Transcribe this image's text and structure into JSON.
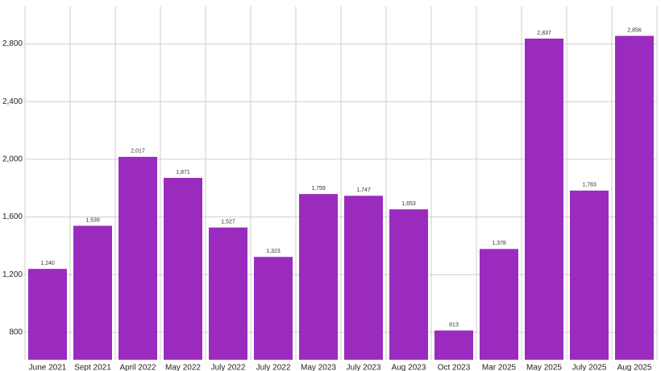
{
  "chart_data": {
    "type": "bar",
    "categories": [
      "June 2021",
      "Sept 2021",
      "April 2022",
      "May 2022",
      "July 2022",
      "July 2022",
      "May 2023",
      "July 2023",
      "Aug 2023",
      "Oct 2023",
      "Mar 2025",
      "May 2025",
      "July 2025",
      "Aug 2025"
    ],
    "values": [
      1240,
      1539,
      2017,
      1871,
      1527,
      1323,
      1759,
      1747,
      1653,
      813,
      1378,
      2837,
      1783,
      2856
    ],
    "value_labels": [
      "1,240",
      "1,539",
      "2,017",
      "1,871",
      "1,527",
      "1,323",
      "1,759",
      "1,747",
      "1,653",
      "813",
      "1,378",
      "2,837",
      "1,783",
      "2,856"
    ],
    "color": "#9b2bbf",
    "ylim": [
      610,
      3060
    ],
    "yticks": [
      {
        "value": 800,
        "label": "800"
      },
      {
        "value": 1200,
        "label": "1,200"
      },
      {
        "value": 1600,
        "label": "1,600"
      },
      {
        "value": 2000,
        "label": "2,000"
      },
      {
        "value": 2400,
        "label": "2,400"
      },
      {
        "value": 2800,
        "label": "2,800"
      }
    ],
    "grid": true
  }
}
